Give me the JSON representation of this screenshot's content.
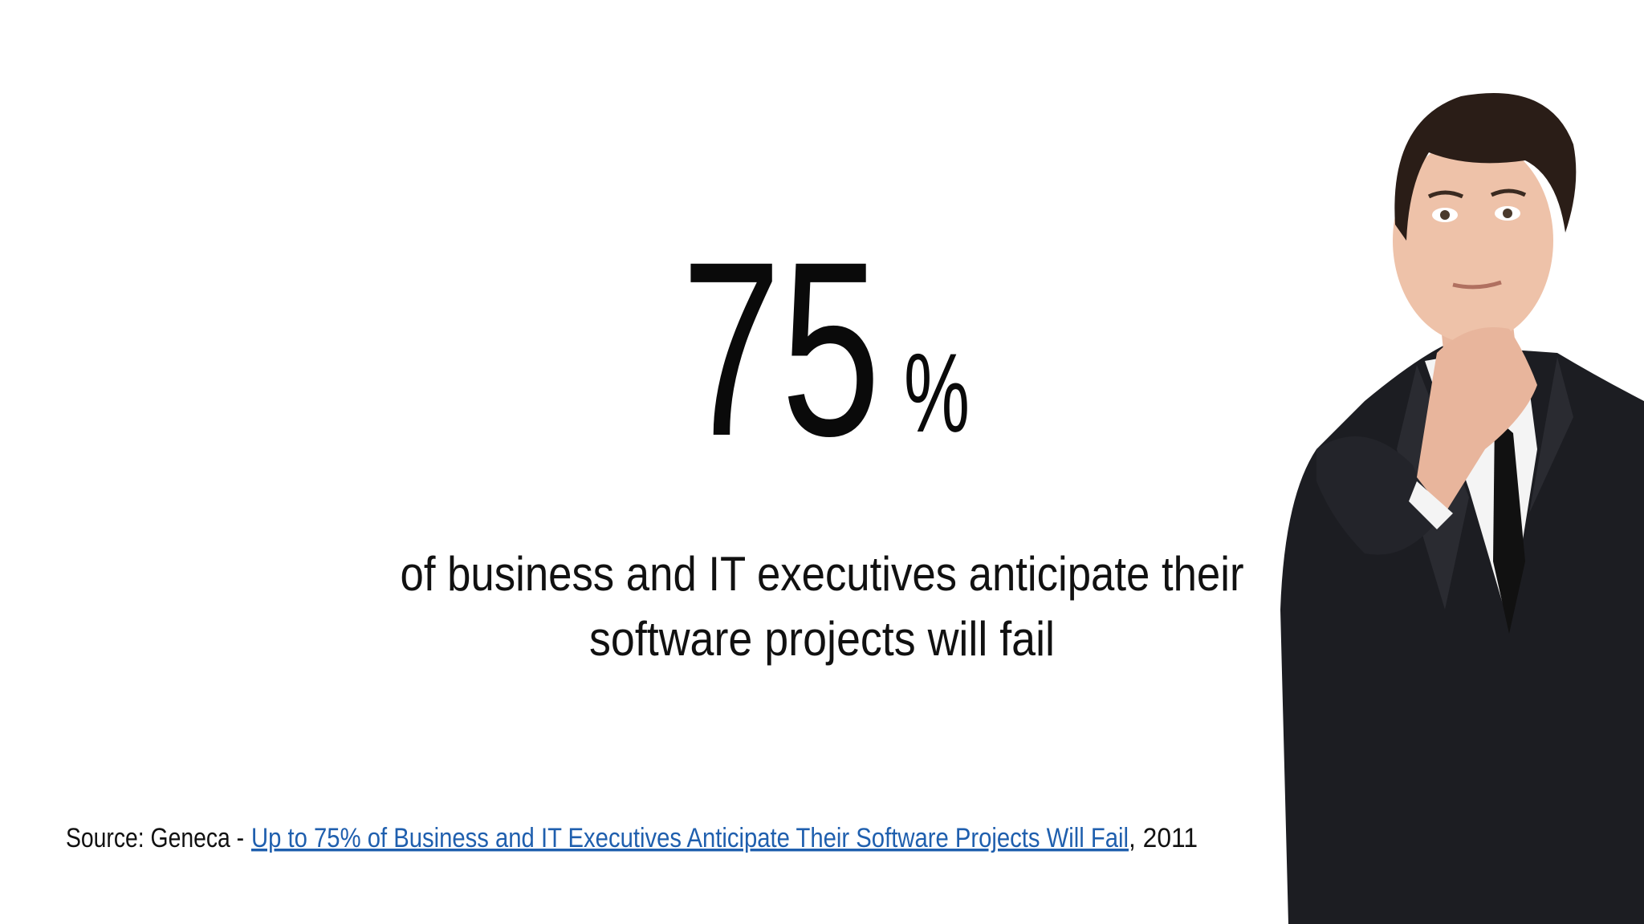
{
  "slide": {
    "stat_number": "75",
    "stat_unit": "%",
    "statement_lines": [
      "of business and IT executives anticipate their",
      "software projects will fail"
    ],
    "source": {
      "prefix": "Source: Geneca - ",
      "link_text": "Up to 75% of Business and IT Executives Anticipate Their Software Projects Will Fail",
      "suffix": ", 2011"
    }
  }
}
